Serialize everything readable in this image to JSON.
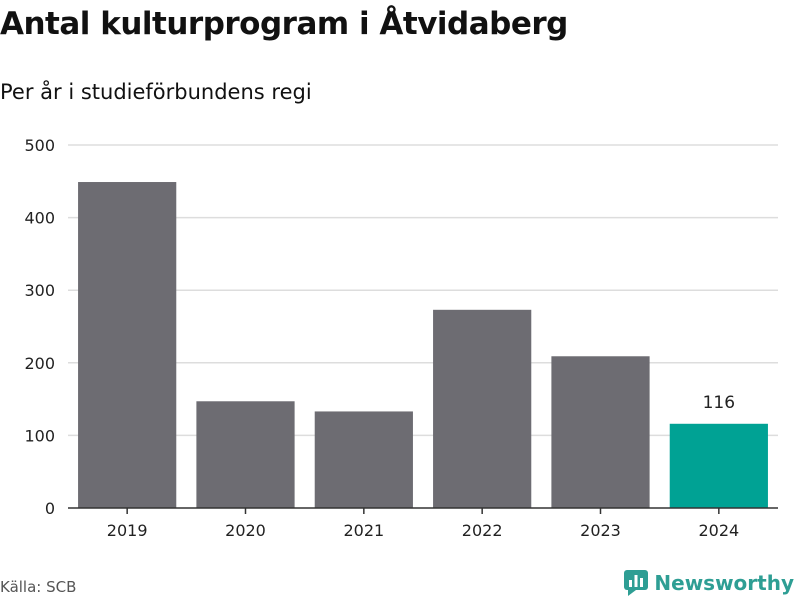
{
  "title": "Antal kulturprogram i Åtvidaberg",
  "subtitle": "Per år i studieförbundens regi",
  "source": "Källa: SCB",
  "brand": {
    "name": "Newsworthy",
    "icon": "newsworthy-logo-icon",
    "color": "#2e9e94"
  },
  "colors": {
    "bar": "#6d6c72",
    "highlight": "#00a294",
    "grid": "#dddddd",
    "axis": "#333333",
    "tick_text": "#222222"
  },
  "chart_data": {
    "type": "bar",
    "categories": [
      "2019",
      "2020",
      "2021",
      "2022",
      "2023",
      "2024"
    ],
    "values": [
      449,
      147,
      133,
      273,
      209,
      116
    ],
    "highlight_index": 5,
    "data_labels": [
      {
        "index": 5,
        "text": "116"
      }
    ],
    "ylim": [
      0,
      500
    ],
    "yticks": [
      0,
      100,
      200,
      300,
      400,
      500
    ],
    "grid": true,
    "xlabel": "",
    "ylabel": ""
  }
}
